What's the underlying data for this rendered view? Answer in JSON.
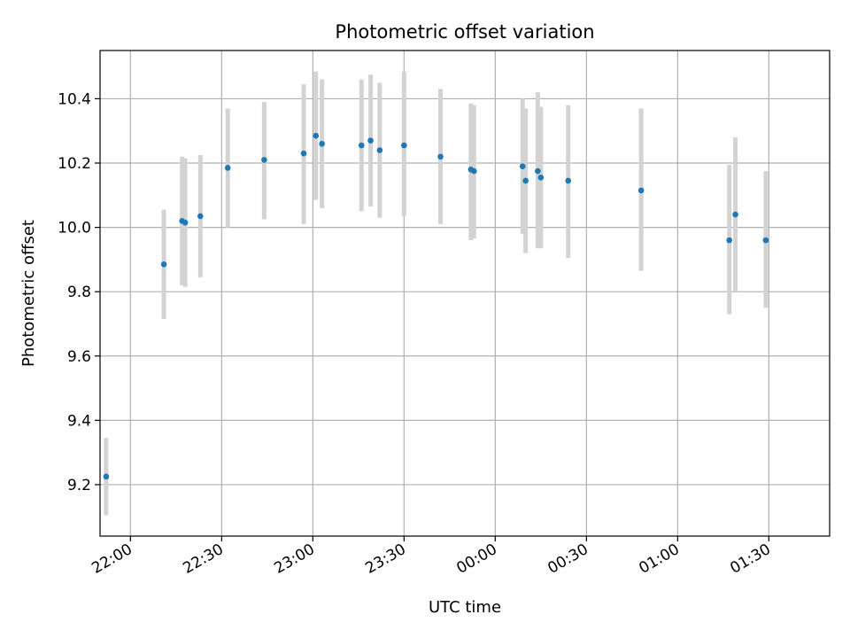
{
  "chart_data": {
    "type": "scatter",
    "title": "Photometric offset variation",
    "xlabel": "UTC time",
    "ylabel": "Photometric offset",
    "xlim": [
      "21:50",
      "01:50"
    ],
    "ylim": [
      9.04,
      10.55
    ],
    "grid": true,
    "x_tick_labels": [
      "22:00",
      "22:30",
      "23:00",
      "23:30",
      "00:00",
      "00:30",
      "01:00",
      "01:30"
    ],
    "x_tick_values": [
      "22:00",
      "22:30",
      "23:00",
      "23:30",
      "00:00",
      "00:30",
      "01:00",
      "01:30"
    ],
    "y_ticks": [
      9.2,
      9.4,
      9.6,
      9.8,
      10.0,
      10.2,
      10.4
    ],
    "y_tick_labels": [
      "9.2",
      "9.4",
      "9.6",
      "9.8",
      "10.0",
      "10.2",
      "10.4"
    ],
    "colors": {
      "point": "#1f77b4",
      "errorbar": "#d3d3d3",
      "grid": "#b0b0b0"
    },
    "points": [
      {
        "x": "21:52",
        "y": 9.225,
        "err_low": 9.105,
        "err_high": 9.345
      },
      {
        "x": "22:11",
        "y": 9.885,
        "err_low": 9.715,
        "err_high": 10.055
      },
      {
        "x": "22:17",
        "y": 10.02,
        "err_low": 9.82,
        "err_high": 10.22
      },
      {
        "x": "22:18",
        "y": 10.015,
        "err_low": 9.815,
        "err_high": 10.215
      },
      {
        "x": "22:23",
        "y": 10.035,
        "err_low": 9.845,
        "err_high": 10.225
      },
      {
        "x": "22:32",
        "y": 10.185,
        "err_low": 10.0,
        "err_high": 10.37
      },
      {
        "x": "22:44",
        "y": 10.21,
        "err_low": 10.025,
        "err_high": 10.39
      },
      {
        "x": "22:57",
        "y": 10.23,
        "err_low": 10.01,
        "err_high": 10.445
      },
      {
        "x": "23:01",
        "y": 10.285,
        "err_low": 10.085,
        "err_high": 10.485
      },
      {
        "x": "23:03",
        "y": 10.26,
        "err_low": 10.06,
        "err_high": 10.46
      },
      {
        "x": "23:16",
        "y": 10.255,
        "err_low": 10.05,
        "err_high": 10.46
      },
      {
        "x": "23:19",
        "y": 10.27,
        "err_low": 10.065,
        "err_high": 10.475
      },
      {
        "x": "23:22",
        "y": 10.24,
        "err_low": 10.03,
        "err_high": 10.45
      },
      {
        "x": "23:30",
        "y": 10.255,
        "err_low": 10.035,
        "err_high": 10.485
      },
      {
        "x": "23:42",
        "y": 10.22,
        "err_low": 10.01,
        "err_high": 10.43
      },
      {
        "x": "23:52",
        "y": 10.18,
        "err_low": 9.96,
        "err_high": 10.385
      },
      {
        "x": "23:53",
        "y": 10.175,
        "err_low": 9.965,
        "err_high": 10.38
      },
      {
        "x": "00:09",
        "y": 10.19,
        "err_low": 9.98,
        "err_high": 10.4
      },
      {
        "x": "00:10",
        "y": 10.145,
        "err_low": 9.92,
        "err_high": 10.37
      },
      {
        "x": "00:14",
        "y": 10.175,
        "err_low": 9.935,
        "err_high": 10.42
      },
      {
        "x": "00:15",
        "y": 10.155,
        "err_low": 9.935,
        "err_high": 10.375
      },
      {
        "x": "00:24",
        "y": 10.145,
        "err_low": 9.905,
        "err_high": 10.38
      },
      {
        "x": "00:48",
        "y": 10.115,
        "err_low": 9.865,
        "err_high": 10.37
      },
      {
        "x": "01:17",
        "y": 9.96,
        "err_low": 9.73,
        "err_high": 10.195
      },
      {
        "x": "01:19",
        "y": 10.04,
        "err_low": 9.8,
        "err_high": 10.28
      },
      {
        "x": "01:29",
        "y": 9.96,
        "err_low": 9.75,
        "err_high": 10.175
      }
    ]
  }
}
